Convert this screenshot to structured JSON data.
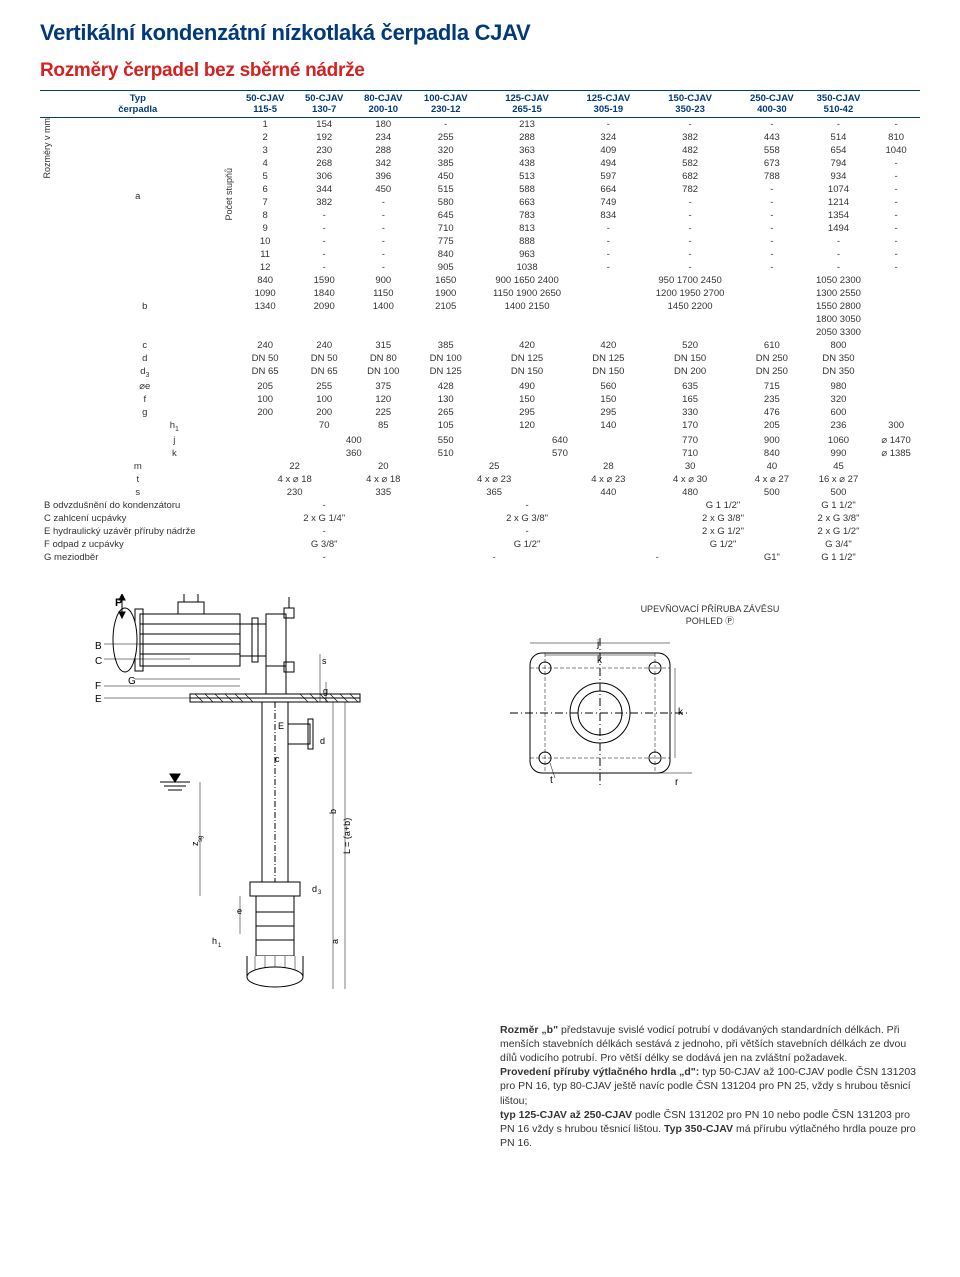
{
  "title": "Vertikální kondenzátní nízkotlaká čerpadla CJAV",
  "subtitle": "Rozměry čerpadel bez sběrné nádrže",
  "header_left": [
    "Typ",
    "čerpadla"
  ],
  "models": [
    {
      "name": "50-CJAV",
      "sub": "115-5"
    },
    {
      "name": "50-CJAV",
      "sub": "130-7"
    },
    {
      "name": "80-CJAV",
      "sub": "200-10"
    },
    {
      "name": "100-CJAV",
      "sub": "230-12"
    },
    {
      "name": "125-CJAV",
      "sub": "265-15"
    },
    {
      "name": "125-CJAV",
      "sub": "305-19"
    },
    {
      "name": "150-CJAV",
      "sub": "350-23"
    },
    {
      "name": "250-CJAV",
      "sub": "400-30"
    },
    {
      "name": "350-CJAV",
      "sub": "510-42"
    }
  ],
  "stage_label": "Počet stupňů",
  "rozmery_label": "Rozměry v mm",
  "section_a_label": "a",
  "stages_1_6": [
    [
      "1",
      "154",
      "180",
      "-",
      "213",
      "-",
      "-",
      "-",
      "-",
      "-"
    ],
    [
      "2",
      "192",
      "234",
      "255",
      "288",
      "324",
      "382",
      "443",
      "514",
      "810"
    ],
    [
      "3",
      "230",
      "288",
      "320",
      "363",
      "409",
      "482",
      "558",
      "654",
      "1040"
    ],
    [
      "4",
      "268",
      "342",
      "385",
      "438",
      "494",
      "582",
      "673",
      "794",
      "-"
    ],
    [
      "5",
      "306",
      "396",
      "450",
      "513",
      "597",
      "682",
      "788",
      "934",
      "-"
    ],
    [
      "6",
      "344",
      "450",
      "515",
      "588",
      "664",
      "782",
      "-",
      "1074",
      "-"
    ]
  ],
  "stages_7_12": [
    [
      "7",
      "382",
      "-",
      "580",
      "663",
      "749",
      "-",
      "-",
      "1214",
      "-"
    ],
    [
      "8",
      "-",
      "-",
      "645",
      "783",
      "834",
      "-",
      "-",
      "1354",
      "-"
    ],
    [
      "9",
      "-",
      "-",
      "710",
      "813",
      "-",
      "-",
      "-",
      "1494",
      "-"
    ],
    [
      "10",
      "-",
      "-",
      "775",
      "888",
      "-",
      "-",
      "-",
      "-",
      "-"
    ],
    [
      "11",
      "-",
      "-",
      "840",
      "963",
      "-",
      "-",
      "-",
      "-",
      "-"
    ],
    [
      "12",
      "-",
      "-",
      "905",
      "1038",
      "-",
      "-",
      "-",
      "-",
      "-"
    ]
  ],
  "row_b_label": "b",
  "row_b": [
    [
      "840",
      "1090",
      "1340"
    ],
    [
      "1590",
      "1840",
      "2090"
    ],
    [
      "900",
      "1150",
      "1400"
    ],
    [
      "1650",
      "1900",
      "2105"
    ],
    [
      "900 1650 2400",
      "1150 1900 2650",
      "1400 2150"
    ],
    [
      "",
      "",
      ""
    ],
    [
      "950 1700 2450",
      "1200 1950 2700",
      "1450 2200"
    ],
    [
      "",
      "",
      ""
    ],
    [
      "1050 2300",
      "1300 2550",
      "1550 2800",
      "1800 3050",
      "2050 3300"
    ]
  ],
  "dim_rows": [
    {
      "label": "c",
      "vals": [
        "240",
        "240",
        "315",
        "385",
        "420",
        "420",
        "520",
        "610",
        "800"
      ]
    },
    {
      "label": "d",
      "vals": [
        "DN 50",
        "DN 50",
        "DN 80",
        "DN 100",
        "DN 125",
        "DN 125",
        "DN 150",
        "DN 250",
        "DN 350"
      ]
    },
    {
      "label": "d<sub class='sub'>3</sub>",
      "vals": [
        "DN 65",
        "DN 65",
        "DN 100",
        "DN 125",
        "DN 150",
        "DN 150",
        "DN 200",
        "DN 250",
        "DN 350"
      ]
    },
    {
      "label": "⌀e",
      "vals": [
        "205",
        "255",
        "375",
        "428",
        "490",
        "560",
        "635",
        "715",
        "980"
      ]
    },
    {
      "label": "f",
      "vals": [
        "100",
        "100",
        "120",
        "130",
        "150",
        "150",
        "165",
        "235",
        "320"
      ]
    },
    {
      "label": "g",
      "vals": [
        "200",
        "200",
        "225",
        "265",
        "295",
        "295",
        "330",
        "476",
        "600"
      ]
    }
  ],
  "row_h1": {
    "label": "h<sub class='sub'>1</sub>",
    "vals": [
      "70",
      "85",
      "105",
      "120",
      "140",
      "170",
      "205",
      "236",
      "300"
    ]
  },
  "jkmts_rows": [
    {
      "label": "j",
      "vals": [
        "400",
        "",
        "550",
        "640",
        "",
        "770",
        "900",
        "1060",
        "⌀ 1470"
      ]
    },
    {
      "label": "k",
      "vals": [
        "360",
        "",
        "510",
        "570",
        "",
        "710",
        "840",
        "990",
        "⌀ 1385"
      ]
    },
    {
      "label": "m",
      "vals": [
        "22",
        "",
        "20",
        "25",
        "",
        "28",
        "30",
        "40",
        "45"
      ]
    },
    {
      "label": "t",
      "vals": [
        "4 x ⌀ 18",
        "",
        "4 x ⌀ 18",
        "4 x ⌀ 23",
        "",
        "4 x ⌀ 23",
        "4 x ⌀ 30",
        "4 x ⌀ 27",
        "16 x ⌀ 27"
      ]
    },
    {
      "label": "s",
      "vals": [
        "230",
        "",
        "335",
        "365",
        "",
        "440",
        "480",
        "500",
        "500"
      ]
    }
  ],
  "foot_rows": [
    {
      "label": "B odvzdušnění do kondenzátoru",
      "vals": [
        "-",
        "",
        "",
        "-",
        "",
        "",
        "G 1 1/2\"",
        "",
        "G 1 1/2\""
      ]
    },
    {
      "label": "C zahlcení ucpávky",
      "vals": [
        "2 x G 1/4\"",
        "",
        "",
        "2 x G 3/8\"",
        "",
        "",
        "2 x G 3/8\"",
        "",
        "2 x G 3/8\""
      ]
    },
    {
      "label": "E hydraulický uzávěr příruby nádrže",
      "vals": [
        "-",
        "",
        "",
        "-",
        "",
        "",
        "2 x G 1/2\"",
        "",
        "2 x G 1/2\""
      ]
    },
    {
      "label": "F odpad z ucpávky",
      "vals": [
        "G 3/8\"",
        "",
        "",
        "G 1/2\"",
        "",
        "",
        "G 1/2\"",
        "",
        "G 3/4\""
      ]
    },
    {
      "label": "G meziodběr",
      "vals": [
        "-",
        "",
        "",
        "-",
        "",
        "-",
        "",
        "G1\"",
        "G 1 1/2\""
      ]
    }
  ],
  "flange_caption_1": "UPEVŇOVACÍ PŘÍRUBA ZÁVĚSU",
  "flange_caption_2": "POHLED Ⓟ",
  "notes_html": "<b>Rozměr „b\"</b> představuje svislé vodicí potrubí v dodávaných standardních délkách. Při menších stavebních délkách sestává z jednoho, při větších stavebních délkách ze dvou dílů vodicího potrubí. Pro větší délky se dodává jen na zvláštní požadavek.<br><b>Provedení příruby výtlačného hrdla „d\":</b> typ 50-CJAV až 100-CJAV podle ČSN 131203 pro PN 16, typ 80-CJAV ještě navíc podle ČSN 131204 pro PN 25, vždy s hrubou těsnicí lištou;<br><b>typ 125-CJAV až 250-CJAV</b> podle ČSN 131202 pro PN 10 nebo podle ČSN 131203 pro PN 16 vždy s hrubou těsnicí lištou. <b>Typ 350-CJAV</b> má přírubu výtlačného hrdla pouze pro PN 16.",
  "colors": {
    "title": "#003a7a",
    "subtitle": "#d62121"
  }
}
